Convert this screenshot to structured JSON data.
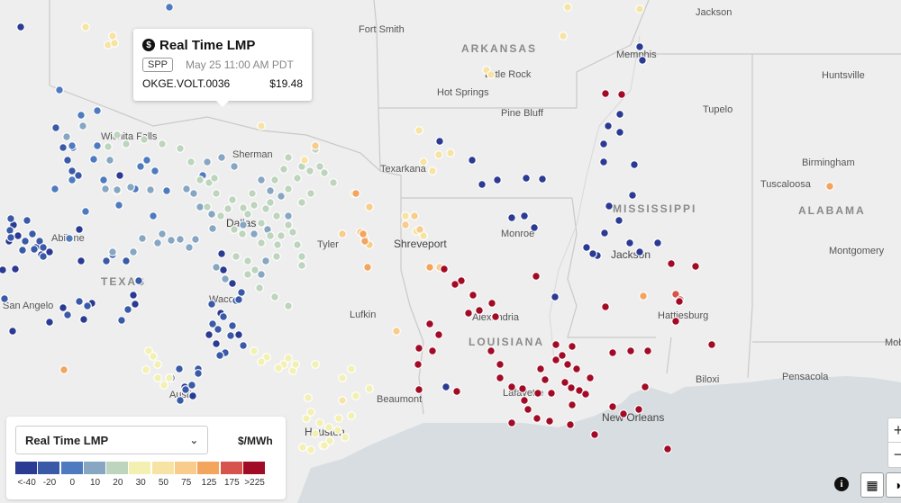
{
  "tooltip": {
    "title": "Real Time LMP",
    "badge": "SPP",
    "time": "May 25 11:00 AM PDT",
    "node_name": "OKGE.VOLT.0036",
    "price": "$19.48"
  },
  "legend": {
    "selected_metric": "Real Time LMP",
    "unit": "$/MWh",
    "colors": [
      "#2b3a92",
      "#3a5aa8",
      "#4e7bbf",
      "#86a6c2",
      "#bdd4bd",
      "#f3f0b2",
      "#f7e3a4",
      "#f7cc8c",
      "#f3a55e",
      "#d6544c",
      "#a20b25"
    ],
    "labels": [
      "<-40",
      "-20",
      "0",
      "10",
      "20",
      "30",
      "50",
      "75",
      "125",
      "175",
      ">225"
    ]
  },
  "states": [
    "ARKANSAS",
    "TEXAS",
    "LOUISIANA",
    "MISSISSIPPI",
    "ALABAMA"
  ],
  "cities": [
    "Jackson",
    "Fort Smith",
    "Memphis",
    "Little Rock",
    "Hot Springs",
    "Pine Bluff",
    "Huntsville",
    "Tupelo",
    "Wichita Falls",
    "Sherman",
    "Texarkana",
    "Birmingham",
    "Tuscaloosa",
    "Dallas",
    "Tyler",
    "Shreveport",
    "Monroe",
    "Abilene",
    "Jackson",
    "Montgomery",
    "San Angelo",
    "Waco",
    "Lufkin",
    "Alexandria",
    "Hattiesburg",
    "Austin",
    "Lafayette",
    "Beaumont",
    "Houston",
    "New Orleans",
    "Biloxi",
    "Pensacola",
    "Mobile"
  ],
  "controls": {
    "zoom_in": "+",
    "zoom_out": "−",
    "info": "i"
  },
  "node_groups": [
    {
      "bin": 0,
      "count": 40
    },
    {
      "bin": 1,
      "count": 45
    },
    {
      "bin": 2,
      "count": 20
    },
    {
      "bin": 3,
      "count": 35
    },
    {
      "bin": 4,
      "count": 55
    },
    {
      "bin": 5,
      "count": 35
    },
    {
      "bin": 6,
      "count": 20
    },
    {
      "bin": 7,
      "count": 12
    },
    {
      "bin": 8,
      "count": 8
    },
    {
      "bin": 9,
      "count": 2
    },
    {
      "bin": 10,
      "count": 60
    }
  ]
}
